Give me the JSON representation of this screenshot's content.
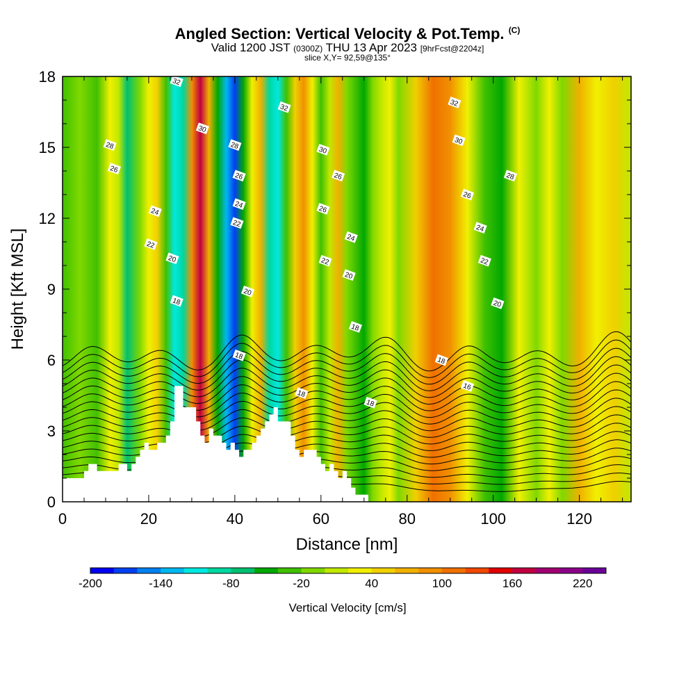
{
  "title": {
    "main": "Angled Section: Vertical Velocity & Pot.Temp.",
    "main_suffix": "(C)",
    "valid_prefix": "Valid 1200 JST",
    "valid_utc": "(0300Z)",
    "valid_date": "THU 13 Apr 2023",
    "fcst": "[9hrFcst@2204z]",
    "slice": "slice X,Y= 92,59@135°"
  },
  "chart_data": {
    "type": "heatmap",
    "xlabel": "Distance [nm]",
    "ylabel": "Height [Kft MSL]",
    "xlim": [
      0,
      132
    ],
    "ylim": [
      0,
      18
    ],
    "x_ticks": [
      "0",
      "20",
      "40",
      "60",
      "80",
      "100",
      "120"
    ],
    "x_tick_values": [
      0,
      20,
      40,
      60,
      80,
      100,
      120
    ],
    "y_ticks": [
      "0",
      "3",
      "6",
      "9",
      "12",
      "15",
      "18"
    ],
    "y_tick_values": [
      0,
      3,
      6,
      9,
      12,
      15,
      18
    ],
    "field_fill": {
      "name": "Vertical Velocity",
      "colorbar_label": "Vertical Velocity [cm/s]",
      "colorbar_tick_labels": [
        "-200",
        "-140",
        "-80",
        "-20",
        "40",
        "100",
        "160",
        "220"
      ],
      "colorbar_tick_values": [
        -200,
        -140,
        -80,
        -20,
        40,
        100,
        160,
        220
      ],
      "colorbar_range": [
        -200,
        240
      ],
      "colors": [
        "#0000f0",
        "#0040f0",
        "#0080f0",
        "#00b8f0",
        "#00e8e0",
        "#00d8a0",
        "#00c070",
        "#00a800",
        "#40c000",
        "#80d800",
        "#c0e800",
        "#f0f000",
        "#f0d000",
        "#f0b000",
        "#f09000",
        "#f07000",
        "#f04800",
        "#e00000",
        "#c00040",
        "#a00070",
        "#8a0088",
        "#6a0098"
      ],
      "columns": [
        {
          "x": 0,
          "w": -40
        },
        {
          "x": 4,
          "w": -10
        },
        {
          "x": 8,
          "w": -30
        },
        {
          "x": 11,
          "w": 20
        },
        {
          "x": 13,
          "w": 10
        },
        {
          "x": 15,
          "w": -70
        },
        {
          "x": 18,
          "w": -20
        },
        {
          "x": 20,
          "w": 20
        },
        {
          "x": 22,
          "w": 55
        },
        {
          "x": 24,
          "w": -40
        },
        {
          "x": 26,
          "w": -120
        },
        {
          "x": 28,
          "w": -90
        },
        {
          "x": 30,
          "w": 90
        },
        {
          "x": 32,
          "w": 170
        },
        {
          "x": 34,
          "w": 60
        },
        {
          "x": 36,
          "w": -60
        },
        {
          "x": 38,
          "w": -130
        },
        {
          "x": 40,
          "w": -180
        },
        {
          "x": 42,
          "w": -60
        },
        {
          "x": 44,
          "w": 30
        },
        {
          "x": 46,
          "w": 70
        },
        {
          "x": 48,
          "w": -100
        },
        {
          "x": 50,
          "w": -110
        },
        {
          "x": 52,
          "w": -40
        },
        {
          "x": 54,
          "w": 50
        },
        {
          "x": 56,
          "w": 80
        },
        {
          "x": 58,
          "w": 30
        },
        {
          "x": 60,
          "w": -40
        },
        {
          "x": 62,
          "w": 10
        },
        {
          "x": 64,
          "w": 60
        },
        {
          "x": 66,
          "w": -20
        },
        {
          "x": 68,
          "w": -40
        },
        {
          "x": 70,
          "w": -60
        },
        {
          "x": 72,
          "w": -20
        },
        {
          "x": 74,
          "w": 10
        },
        {
          "x": 76,
          "w": 30
        },
        {
          "x": 78,
          "w": -10
        },
        {
          "x": 82,
          "w": 50
        },
        {
          "x": 86,
          "w": 100
        },
        {
          "x": 90,
          "w": 80
        },
        {
          "x": 94,
          "w": 20
        },
        {
          "x": 98,
          "w": -30
        },
        {
          "x": 102,
          "w": -50
        },
        {
          "x": 106,
          "w": 20
        },
        {
          "x": 110,
          "w": -10
        },
        {
          "x": 113,
          "w": 30
        },
        {
          "x": 116,
          "w": -20
        },
        {
          "x": 120,
          "w": 60
        },
        {
          "x": 124,
          "w": 20
        },
        {
          "x": 128,
          "w": 40
        },
        {
          "x": 132,
          "w": 10
        }
      ]
    },
    "isentropes": {
      "name": "Pot.Temp.",
      "levels": [
        16,
        17,
        18,
        19,
        20,
        21,
        22,
        23,
        24,
        25,
        26,
        27,
        28,
        29,
        30,
        31,
        32,
        33,
        34
      ],
      "labels": [
        {
          "text": "32",
          "x": 26.5,
          "y": 17.8
        },
        {
          "text": "32",
          "x": 51.5,
          "y": 16.7
        },
        {
          "text": "32",
          "x": 91,
          "y": 16.9
        },
        {
          "text": "30",
          "x": 32.5,
          "y": 15.8
        },
        {
          "text": "30",
          "x": 60.5,
          "y": 14.9
        },
        {
          "text": "30",
          "x": 92,
          "y": 15.3
        },
        {
          "text": "28",
          "x": 11,
          "y": 15.1
        },
        {
          "text": "28",
          "x": 40,
          "y": 15.1
        },
        {
          "text": "28",
          "x": 104,
          "y": 13.8
        },
        {
          "text": "26",
          "x": 12,
          "y": 14.1
        },
        {
          "text": "26",
          "x": 41,
          "y": 13.8
        },
        {
          "text": "26",
          "x": 64,
          "y": 13.8
        },
        {
          "text": "26",
          "x": 94,
          "y": 13.0
        },
        {
          "text": "26",
          "x": 60.5,
          "y": 12.4
        },
        {
          "text": "24",
          "x": 21.5,
          "y": 12.3
        },
        {
          "text": "24",
          "x": 41,
          "y": 12.6
        },
        {
          "text": "24",
          "x": 67,
          "y": 11.2
        },
        {
          "text": "24",
          "x": 97,
          "y": 11.6
        },
        {
          "text": "22",
          "x": 20.5,
          "y": 10.9
        },
        {
          "text": "22",
          "x": 40.5,
          "y": 11.8
        },
        {
          "text": "22",
          "x": 61,
          "y": 10.2
        },
        {
          "text": "22",
          "x": 98,
          "y": 10.2
        },
        {
          "text": "20",
          "x": 25.5,
          "y": 10.3
        },
        {
          "text": "20",
          "x": 43,
          "y": 8.9
        },
        {
          "text": "20",
          "x": 66.5,
          "y": 9.6
        },
        {
          "text": "20",
          "x": 101,
          "y": 8.4
        },
        {
          "text": "18",
          "x": 26.5,
          "y": 8.5
        },
        {
          "text": "18",
          "x": 41,
          "y": 6.2
        },
        {
          "text": "18",
          "x": 55.5,
          "y": 4.6
        },
        {
          "text": "18",
          "x": 68,
          "y": 7.4
        },
        {
          "text": "18",
          "x": 71.5,
          "y": 4.2
        },
        {
          "text": "18",
          "x": 88,
          "y": 6.0
        },
        {
          "text": "16",
          "x": 94,
          "y": 4.9
        }
      ]
    },
    "terrain": {
      "name": "Terrain",
      "x": [
        0,
        5,
        5,
        6,
        6,
        8,
        8,
        13,
        13,
        15,
        15,
        16,
        16,
        17,
        17,
        18,
        18,
        19,
        19,
        20,
        20,
        22,
        22,
        24,
        24,
        25,
        25,
        26,
        26,
        28,
        28,
        31,
        31,
        32,
        32,
        33,
        33,
        34,
        34,
        35,
        35,
        37,
        37,
        38,
        38,
        39,
        39,
        40,
        40,
        41,
        41,
        42,
        42,
        44,
        44,
        45,
        45,
        46,
        46,
        47,
        47,
        48,
        48,
        49,
        49,
        50,
        50,
        53,
        53,
        54,
        54,
        55,
        55,
        56,
        56,
        59,
        59,
        60,
        60,
        61,
        61,
        62,
        62,
        63,
        63,
        64,
        64,
        65,
        65,
        66,
        66,
        67,
        67,
        68,
        68,
        71,
        71,
        132
      ],
      "y": [
        1.0,
        1.0,
        1.3,
        1.3,
        1.6,
        1.6,
        1.3,
        1.3,
        1.6,
        1.6,
        1.3,
        1.3,
        1.6,
        1.6,
        1.9,
        1.9,
        2.2,
        2.2,
        2.5,
        2.5,
        2.2,
        2.2,
        2.5,
        2.5,
        2.8,
        2.8,
        3.4,
        3.4,
        4.9,
        4.9,
        4.0,
        4.0,
        3.4,
        3.4,
        2.8,
        2.8,
        2.5,
        2.5,
        3.1,
        3.1,
        2.8,
        2.8,
        2.5,
        2.5,
        2.2,
        2.2,
        2.5,
        2.5,
        2.2,
        2.2,
        1.9,
        1.9,
        2.2,
        2.2,
        2.5,
        2.5,
        2.8,
        2.8,
        3.1,
        3.1,
        3.4,
        3.4,
        3.7,
        3.7,
        4.0,
        4.0,
        3.4,
        3.4,
        2.8,
        2.8,
        2.2,
        2.2,
        1.9,
        1.9,
        2.2,
        2.2,
        1.9,
        1.9,
        1.6,
        1.6,
        1.3,
        1.3,
        1.6,
        1.6,
        1.3,
        1.3,
        1.0,
        1.0,
        1.3,
        1.3,
        1.0,
        1.0,
        0.6,
        0.6,
        0.3,
        0.3,
        0.0,
        0.0
      ]
    }
  }
}
